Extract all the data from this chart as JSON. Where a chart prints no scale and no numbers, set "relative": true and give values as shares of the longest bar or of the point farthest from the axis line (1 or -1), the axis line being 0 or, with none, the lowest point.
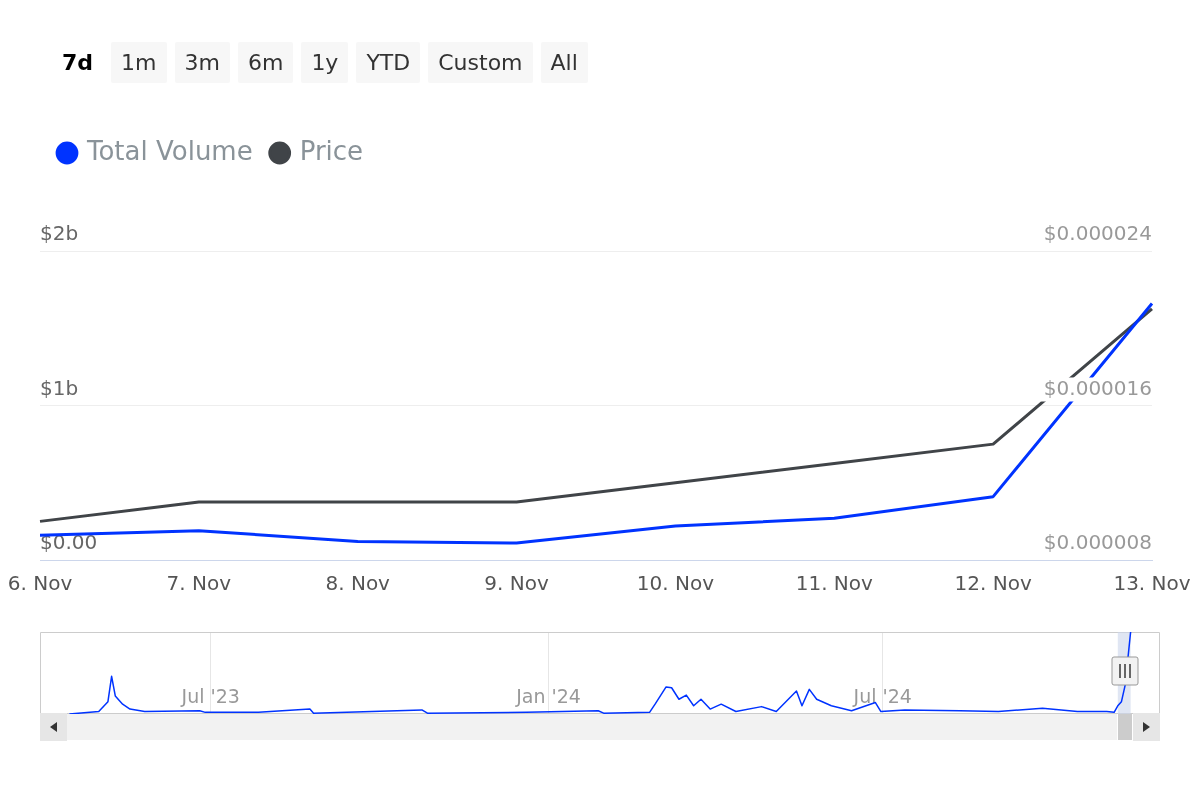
{
  "chart_data": [
    {
      "type": "line",
      "annotations": [
        "7d",
        "1m",
        "3m",
        "6m",
        "1y",
        "YTD",
        "Custom",
        "All"
      ],
      "categories": [
        "6. Nov",
        "7. Nov",
        "8. Nov",
        "9. Nov",
        "10. Nov",
        "11. Nov",
        "12. Nov",
        "13. Nov"
      ],
      "series": [
        {
          "name": "Total Volume",
          "color": "#0033ff",
          "values": [
            0.16,
            0.19,
            0.12,
            0.11,
            0.22,
            0.27,
            0.41,
            1.66
          ]
        },
        {
          "name": "Price",
          "color": "#404448",
          "axis": "y2",
          "values": [
            1e-05,
            1.1e-05,
            1.1e-05,
            1.1e-05,
            1.2e-05,
            1.3e-05,
            1.4e-05,
            2.1e-05
          ]
        }
      ],
      "ylim": [
        0,
        2
      ],
      "yticks": [
        {
          "value": 0,
          "label": "$0.00"
        },
        {
          "value": 1,
          "label": "$1b"
        },
        {
          "value": 2,
          "label": "$2b"
        }
      ],
      "y2lim": [
        8e-06,
        2.4e-05
      ],
      "y2ticks": [
        {
          "value": 8e-06,
          "label": "$0.000008"
        },
        {
          "value": 1.6e-05,
          "label": "$0.000016"
        },
        {
          "value": 2.4e-05,
          "label": "$0.000024"
        }
      ],
      "grid": "y",
      "legend": "top left",
      "marker": "none",
      "line_style": "solid"
    },
    {
      "type": "line",
      "relative": true,
      "tick_labels": "x",
      "grid": "x",
      "marker": "none",
      "line_style": "solid",
      "x": [
        "2023-04-15",
        "2023-05-01",
        "2023-05-06",
        "2023-05-08",
        "2023-05-10",
        "2023-05-14",
        "2023-05-18",
        "2023-05-26",
        "2023-06-25",
        "2023-06-28",
        "2023-07-27",
        "2023-08-24",
        "2023-08-26",
        "2023-10-24",
        "2023-10-27",
        "2023-12-20",
        "2024-01-28",
        "2024-01-31",
        "2024-02-25",
        "2024-02-28",
        "2024-03-05",
        "2024-03-08",
        "2024-03-12",
        "2024-03-16",
        "2024-03-20",
        "2024-03-24",
        "2024-03-29",
        "2024-04-04",
        "2024-04-12",
        "2024-04-26",
        "2024-05-04",
        "2024-05-15",
        "2024-05-18",
        "2024-05-22",
        "2024-05-26",
        "2024-06-03",
        "2024-06-14",
        "2024-06-27",
        "2024-06-30",
        "2024-07-13",
        "2024-08-12",
        "2024-09-02",
        "2024-09-26",
        "2024-10-15",
        "2024-10-31",
        "2024-11-04",
        "2024-11-06",
        "2024-11-08",
        "2024-11-10",
        "2024-11-13"
      ],
      "series": [
        {
          "color": "#0033ff",
          "values": [
            0,
            0.03,
            0.15,
            0.46,
            0.22,
            0.12,
            0.06,
            0.03,
            0.04,
            0.02,
            0.02,
            0.06,
            0.01,
            0.05,
            0.01,
            0.02,
            0.04,
            0.01,
            0.02,
            0.12,
            0.33,
            0.32,
            0.18,
            0.23,
            0.1,
            0.18,
            0.06,
            0.12,
            0.03,
            0.09,
            0.03,
            0.28,
            0.1,
            0.3,
            0.18,
            0.1,
            0.04,
            0.14,
            0.03,
            0.05,
            0.04,
            0.03,
            0.07,
            0.03,
            0.03,
            0.02,
            0.1,
            0.15,
            0.35,
            1
          ]
        }
      ],
      "xlim": [
        "2023-03-30",
        "2024-11-29"
      ],
      "xticks": [
        {
          "value": "2023-07-01",
          "label": "Jul '23"
        },
        {
          "value": "2024-01-01",
          "label": "Jan '24"
        },
        {
          "value": "2024-07-01",
          "label": "Jul '24"
        }
      ],
      "bands": [
        {
          "axis": "x",
          "from": "2024-11-06",
          "to": "2024-11-13",
          "color": "#ccd6eb"
        }
      ]
    }
  ]
}
